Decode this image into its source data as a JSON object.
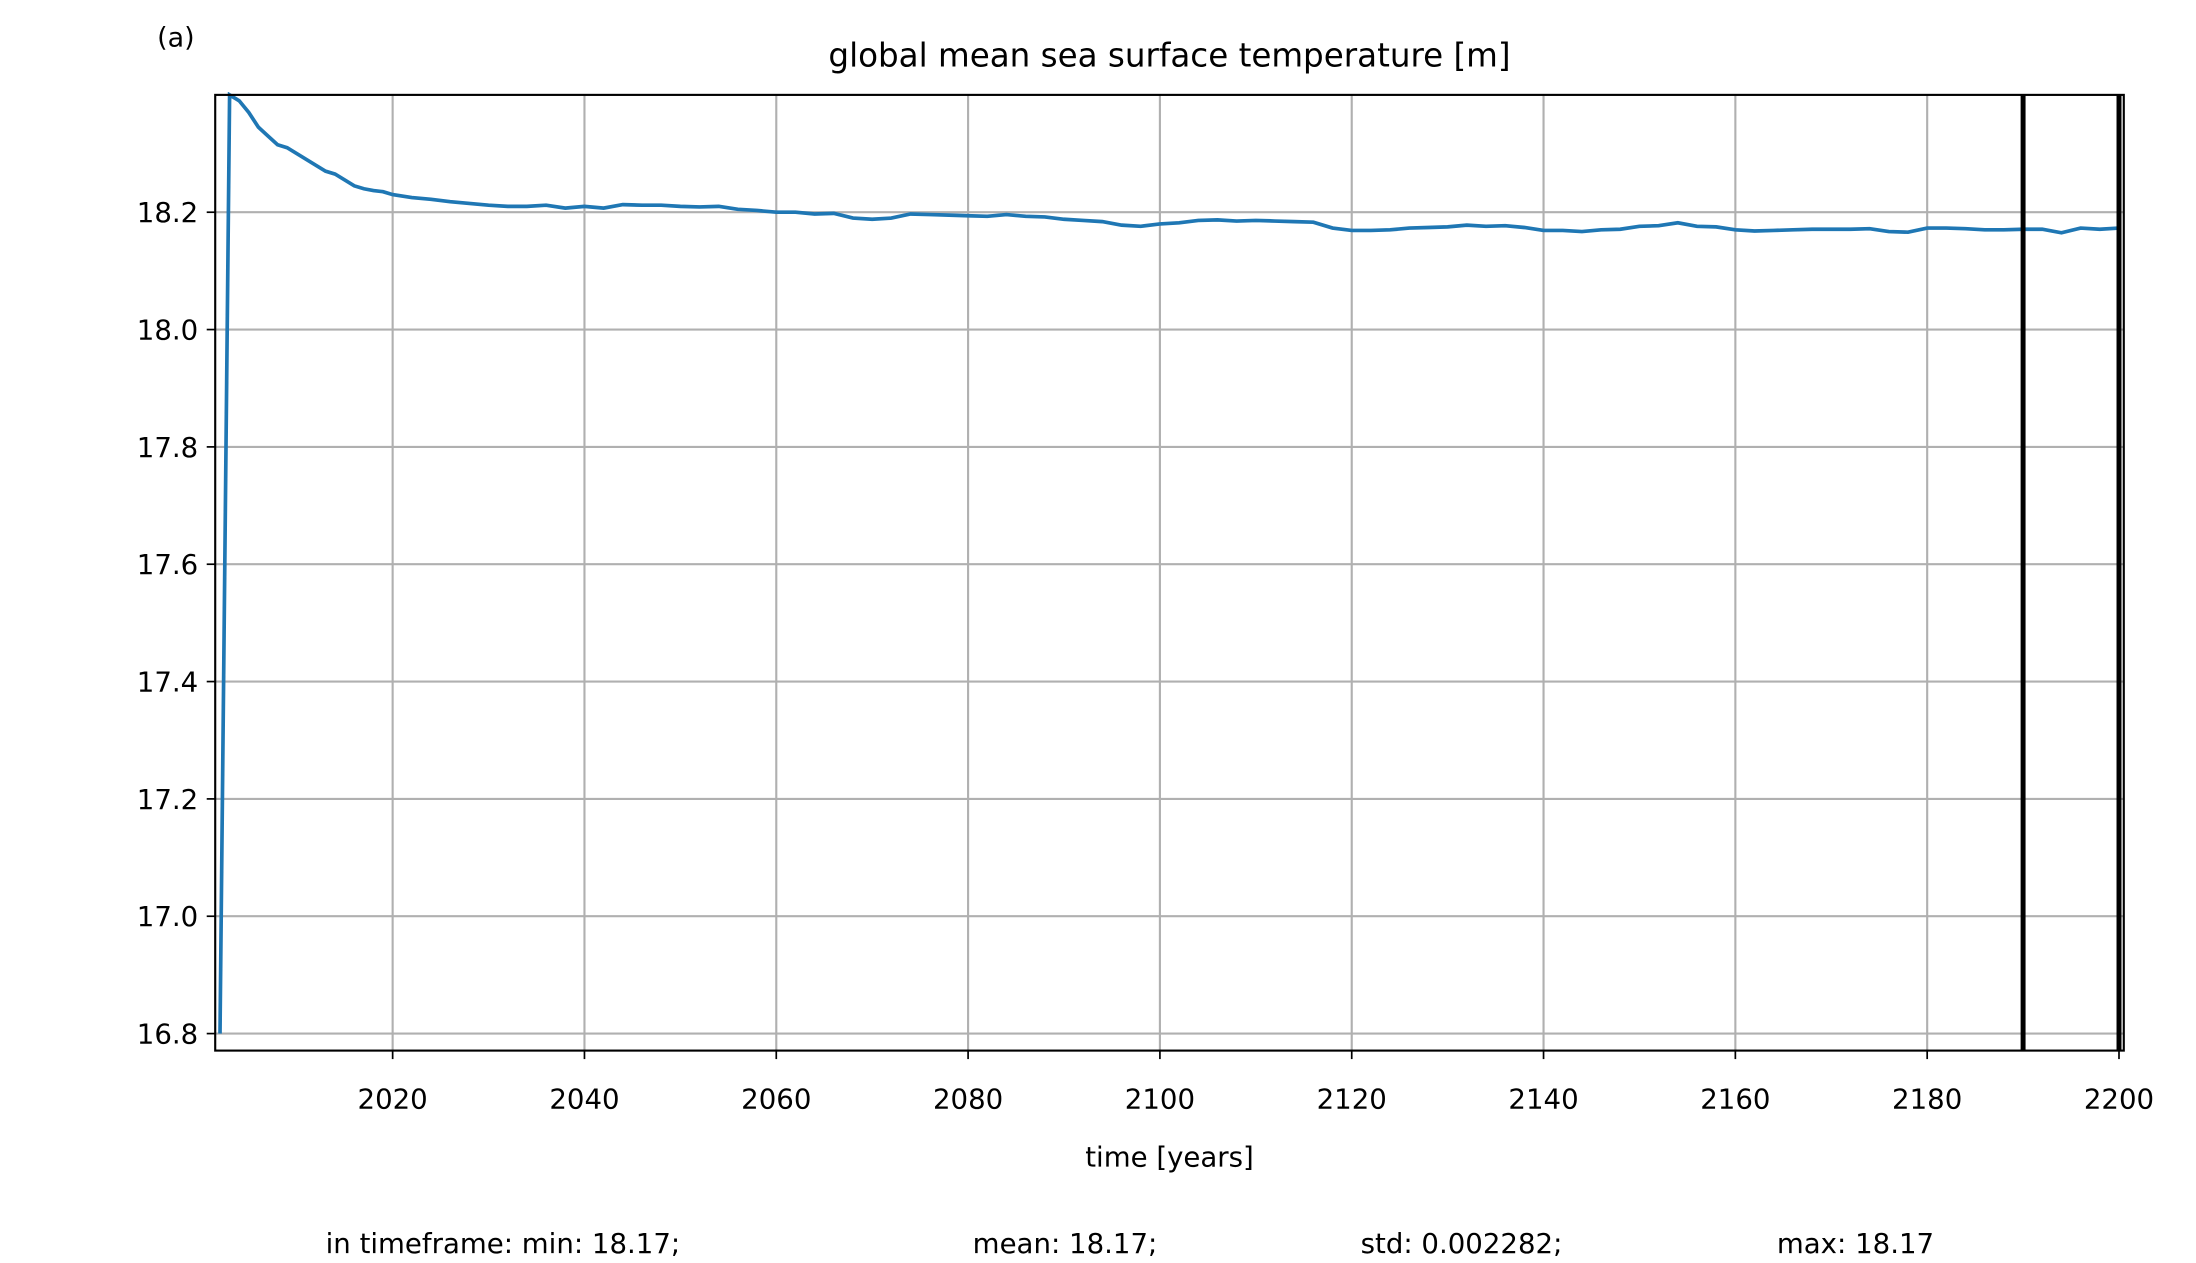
{
  "chart_data": {
    "type": "line",
    "panel_label": "(a)",
    "title": "global mean sea surface temperature [m]",
    "xlabel": "time [years]",
    "x": [
      2002,
      2003,
      2004,
      2005,
      2006,
      2007,
      2008,
      2009,
      2010,
      2011,
      2012,
      2013,
      2014,
      2015,
      2016,
      2017,
      2018,
      2019,
      2020,
      2022,
      2024,
      2026,
      2028,
      2030,
      2032,
      2034,
      2036,
      2038,
      2040,
      2042,
      2044,
      2046,
      2048,
      2050,
      2052,
      2054,
      2056,
      2058,
      2060,
      2062,
      2064,
      2066,
      2068,
      2070,
      2072,
      2074,
      2076,
      2078,
      2080,
      2082,
      2084,
      2086,
      2088,
      2090,
      2092,
      2094,
      2096,
      2098,
      2100,
      2102,
      2104,
      2106,
      2108,
      2110,
      2112,
      2114,
      2116,
      2118,
      2120,
      2122,
      2124,
      2126,
      2128,
      2130,
      2132,
      2134,
      2136,
      2138,
      2140,
      2142,
      2144,
      2146,
      2148,
      2150,
      2152,
      2154,
      2156,
      2158,
      2160,
      2162,
      2164,
      2166,
      2168,
      2170,
      2172,
      2174,
      2176,
      2178,
      2180,
      2182,
      2184,
      2186,
      2188,
      2190,
      2192,
      2194,
      2196,
      2198,
      2200
    ],
    "series": [
      {
        "color": "#1f77b4",
        "values": [
          16.8,
          18.4,
          18.39,
          18.37,
          18.345,
          18.33,
          18.315,
          18.31,
          18.3,
          18.29,
          18.28,
          18.27,
          18.265,
          18.255,
          18.245,
          18.24,
          18.237,
          18.235,
          18.23,
          18.225,
          18.222,
          18.218,
          18.215,
          18.212,
          18.21,
          18.21,
          18.212,
          18.207,
          18.21,
          18.207,
          18.213,
          18.212,
          18.212,
          18.21,
          18.209,
          18.21,
          18.205,
          18.203,
          18.2,
          18.2,
          18.197,
          18.198,
          18.19,
          18.188,
          18.19,
          18.197,
          18.196,
          18.195,
          18.194,
          18.193,
          18.196,
          18.193,
          18.192,
          18.188,
          18.186,
          18.184,
          18.178,
          18.176,
          18.18,
          18.182,
          18.186,
          18.187,
          18.185,
          18.186,
          18.185,
          18.184,
          18.183,
          18.173,
          18.169,
          18.169,
          18.17,
          18.173,
          18.174,
          18.175,
          18.178,
          18.176,
          18.177,
          18.174,
          18.169,
          18.169,
          18.167,
          18.17,
          18.171,
          18.176,
          18.177,
          18.182,
          18.176,
          18.175,
          18.17,
          18.168,
          18.169,
          18.17,
          18.171,
          18.171,
          18.171,
          18.172,
          18.167,
          18.166,
          18.173,
          18.173,
          18.172,
          18.17,
          18.17,
          18.171,
          18.171,
          18.165,
          18.173,
          18.171,
          18.173
        ]
      }
    ],
    "xlim": [
      2001.5,
      2200.5
    ],
    "ylim": [
      16.771,
      18.4
    ],
    "xticks": [
      2020,
      2040,
      2060,
      2080,
      2100,
      2120,
      2140,
      2160,
      2180,
      2200
    ],
    "yticks": [
      16.8,
      {
        "value": 17,
        "label": "17.0"
      },
      17.2,
      17.4,
      17.6,
      17.8,
      {
        "value": 18,
        "label": "18.0"
      },
      18.2
    ],
    "grid": true,
    "timeframe": [
      2190,
      2200
    ],
    "footer": [
      "in timeframe: min: 18.17;",
      "mean: 18.17;",
      "std: 0.002282;",
      "max: 18.17"
    ]
  }
}
